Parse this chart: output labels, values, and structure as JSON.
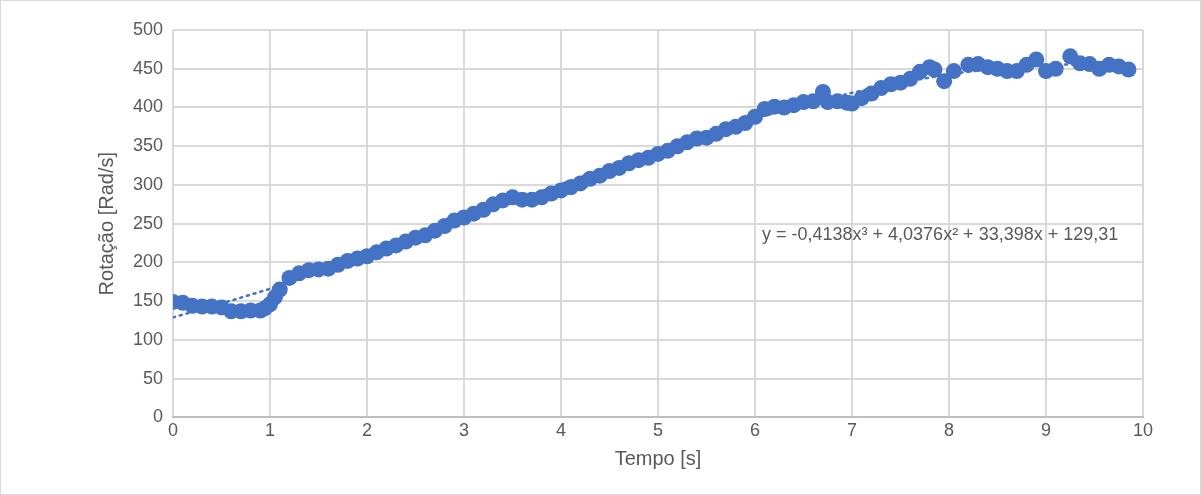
{
  "chart_data": {
    "type": "scatter",
    "xlabel": "Tempo [s]",
    "ylabel": "Rotação [Rad/s]",
    "xlim": [
      0,
      10
    ],
    "xticks": [
      0,
      1,
      2,
      3,
      4,
      5,
      6,
      7,
      8,
      9,
      10
    ],
    "ylim": [
      0,
      500
    ],
    "yticks": [
      0,
      50,
      100,
      150,
      200,
      250,
      300,
      350,
      400,
      450,
      500
    ],
    "grid": true,
    "legend": false,
    "marker": "circle",
    "annotations": [
      "y = -0,4138x³ + 4,0376x² + 33,398x + 129,31"
    ],
    "series": [
      {
        "color": "#4472c4",
        "x": [
          0,
          0.1,
          0.2,
          0.3,
          0.4,
          0.5,
          0.6,
          0.7,
          0.8,
          0.9,
          0.95,
          1.0,
          1.05,
          1.1,
          1.2,
          1.3,
          1.4,
          1.5,
          1.6,
          1.7,
          1.8,
          1.9,
          2.0,
          2.1,
          2.2,
          2.3,
          2.4,
          2.5,
          2.6,
          2.7,
          2.8,
          2.9,
          3.0,
          3.1,
          3.2,
          3.3,
          3.4,
          3.5,
          3.6,
          3.7,
          3.8,
          3.9,
          4.0,
          4.1,
          4.2,
          4.3,
          4.4,
          4.5,
          4.6,
          4.7,
          4.8,
          4.9,
          5.0,
          5.1,
          5.2,
          5.3,
          5.4,
          5.5,
          5.6,
          5.7,
          5.8,
          5.9,
          6.0,
          6.1,
          6.2,
          6.3,
          6.4,
          6.5,
          6.6,
          6.7,
          6.75,
          6.85,
          6.95,
          7.0,
          7.1,
          7.2,
          7.3,
          7.4,
          7.5,
          7.6,
          7.7,
          7.8,
          7.85,
          7.95,
          8.05,
          8.2,
          8.3,
          8.4,
          8.5,
          8.6,
          8.7,
          8.8,
          8.9,
          9.0,
          9.1,
          9.25,
          9.35,
          9.45,
          9.55,
          9.65,
          9.75,
          9.85
        ],
        "values": [
          149,
          148,
          144,
          143,
          143,
          142,
          137,
          137,
          138,
          138,
          141,
          146,
          155,
          165,
          180,
          186,
          190,
          191,
          192,
          197,
          202,
          205,
          208,
          213,
          218,
          222,
          227,
          232,
          235,
          241,
          247,
          254,
          258,
          263,
          268,
          275,
          280,
          284,
          281,
          281,
          284,
          289,
          293,
          297,
          302,
          308,
          312,
          318,
          322,
          328,
          332,
          335,
          340,
          344,
          350,
          355,
          360,
          361,
          366,
          372,
          375,
          380,
          388,
          398,
          401,
          400,
          403,
          407,
          408,
          420,
          407,
          408,
          406,
          405,
          412,
          418,
          425,
          430,
          432,
          437,
          446,
          452,
          449,
          434,
          447,
          455,
          456,
          452,
          450,
          447,
          447,
          455,
          462,
          447,
          450,
          466,
          457,
          456,
          450,
          455,
          453,
          449
        ]
      },
      {
        "type": "line",
        "color": "#4472c4",
        "line_style": "dotted",
        "marker": "none",
        "x": [
          0,
          0.5,
          1,
          1.5,
          2,
          2.5,
          3,
          3.5,
          4,
          4.5,
          5,
          5.5,
          6,
          6.5,
          7,
          7.5,
          8,
          8.5,
          9,
          9.5,
          9.85
        ],
        "values": [
          129,
          147,
          166,
          187,
          209,
          232,
          255,
          278,
          301,
          324,
          346,
          366,
          386,
          403,
          419,
          432,
          443,
          451,
          455,
          456,
          455
        ]
      }
    ]
  }
}
